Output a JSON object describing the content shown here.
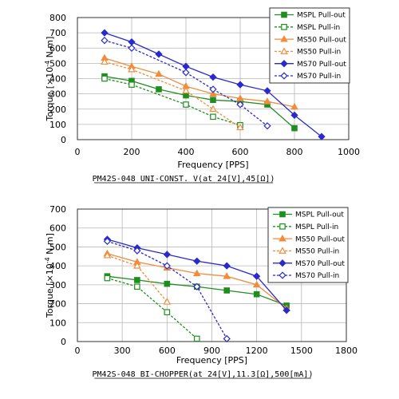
{
  "chart_data": [
    {
      "type": "line",
      "caption": "PM42S-048 UNI-CONST. V(at 24[V],45[Ω])",
      "xlabel": "Frequency [PPS]",
      "ylabel_prefix": "Torque [×10",
      "ylabel_exp": "-4",
      "ylabel_suffix": " N.m]",
      "xlim": [
        0,
        1000
      ],
      "ylim": [
        0,
        800
      ],
      "xticks": [
        0,
        200,
        400,
        600,
        800,
        1000
      ],
      "yticks": [
        0,
        100,
        200,
        300,
        400,
        500,
        600,
        700,
        800
      ],
      "grid": true,
      "legend_position": "top-right",
      "series": [
        {
          "name": "MSPL Pull-out",
          "color": "#1e8f1e",
          "dash": false,
          "marker": "square-filled",
          "x": [
            100,
            200,
            300,
            400,
            500,
            600,
            700,
            800
          ],
          "y": [
            415,
            385,
            330,
            290,
            260,
            250,
            230,
            75
          ]
        },
        {
          "name": "MSPL Pull-in",
          "color": "#1e8f1e",
          "dash": true,
          "marker": "square-open",
          "x": [
            100,
            200,
            400,
            500,
            600
          ],
          "y": [
            400,
            360,
            230,
            150,
            95
          ]
        },
        {
          "name": "MS50 Pull-out",
          "color": "#f08c3c",
          "dash": false,
          "marker": "triangle-filled",
          "x": [
            100,
            200,
            300,
            400,
            500,
            600,
            700,
            800
          ],
          "y": [
            535,
            480,
            430,
            350,
            300,
            270,
            250,
            215
          ]
        },
        {
          "name": "MS50 Pull-in",
          "color": "#f08c3c",
          "dash": true,
          "marker": "triangle-open",
          "x": [
            100,
            200,
            400,
            500,
            600
          ],
          "y": [
            510,
            460,
            320,
            200,
            80
          ]
        },
        {
          "name": "MS70 Pull-out",
          "color": "#2a2acc",
          "dash": false,
          "marker": "diamond-filled",
          "x": [
            100,
            200,
            300,
            400,
            500,
            600,
            700,
            800,
            900
          ],
          "y": [
            700,
            640,
            560,
            480,
            410,
            360,
            320,
            160,
            20
          ]
        },
        {
          "name": "MS70 Pull-in",
          "color": "#2a2acc",
          "dash": true,
          "marker": "diamond-open",
          "x": [
            100,
            200,
            400,
            500,
            600,
            700
          ],
          "y": [
            650,
            600,
            440,
            330,
            230,
            90
          ]
        }
      ]
    },
    {
      "type": "line",
      "caption": "PM42S-048 BI-CHOPPER(at 24[V],11.3[Ω],500[mA])",
      "xlabel": "Frequency [PPS]",
      "ylabel_prefix": "Torque [×10",
      "ylabel_exp": "-4",
      "ylabel_suffix": " N.m]",
      "xlim": [
        0,
        1800
      ],
      "ylim": [
        0,
        700
      ],
      "xticks": [
        0,
        300,
        600,
        900,
        1200,
        1500,
        1800
      ],
      "yticks": [
        0,
        100,
        200,
        300,
        400,
        500,
        600,
        700
      ],
      "grid": true,
      "legend_position": "top-right",
      "series": [
        {
          "name": "MSPL Pull-out",
          "color": "#1e8f1e",
          "dash": false,
          "marker": "square-filled",
          "x": [
            200,
            400,
            600,
            800,
            1000,
            1200,
            1400
          ],
          "y": [
            345,
            325,
            305,
            290,
            270,
            250,
            190
          ]
        },
        {
          "name": "MSPL Pull-in",
          "color": "#1e8f1e",
          "dash": true,
          "marker": "square-open",
          "x": [
            200,
            400,
            600,
            800
          ],
          "y": [
            335,
            290,
            155,
            15
          ]
        },
        {
          "name": "MS50 Pull-out",
          "color": "#f08c3c",
          "dash": false,
          "marker": "triangle-filled",
          "x": [
            200,
            400,
            600,
            800,
            1000,
            1200,
            1400
          ],
          "y": [
            465,
            420,
            390,
            360,
            345,
            300,
            175
          ]
        },
        {
          "name": "MS50 Pull-in",
          "color": "#f08c3c",
          "dash": true,
          "marker": "triangle-open",
          "x": [
            200,
            400,
            600
          ],
          "y": [
            455,
            400,
            210
          ]
        },
        {
          "name": "MS70 Pull-out",
          "color": "#2a2acc",
          "dash": false,
          "marker": "diamond-filled",
          "x": [
            200,
            400,
            600,
            800,
            1000,
            1200,
            1400
          ],
          "y": [
            540,
            495,
            460,
            425,
            400,
            345,
            165
          ]
        },
        {
          "name": "MS70 Pull-in",
          "color": "#2a2acc",
          "dash": true,
          "marker": "diamond-open",
          "x": [
            200,
            400,
            600,
            800,
            1000
          ],
          "y": [
            530,
            480,
            400,
            290,
            15
          ]
        }
      ]
    }
  ]
}
